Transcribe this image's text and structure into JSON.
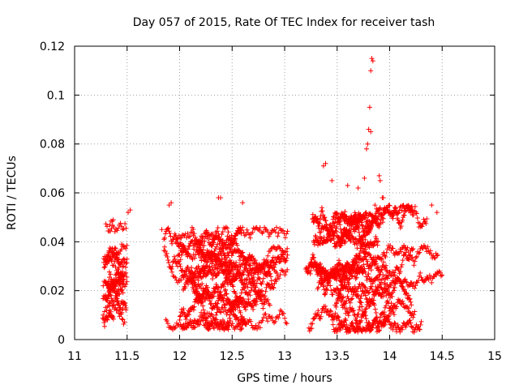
{
  "chart_data": {
    "type": "scatter",
    "title": "Day 057 of 2015, Rate Of TEC Index for receiver tash",
    "xlabel": "GPS time / hours",
    "ylabel": "ROTI / TECUs",
    "xlim": [
      11,
      15
    ],
    "ylim": [
      0,
      0.12
    ],
    "x_ticks": [
      11,
      11.5,
      12,
      12.5,
      13,
      13.5,
      14,
      14.5,
      15
    ],
    "x_tick_labels": [
      "11",
      "11.5",
      "12",
      "12.5",
      "13",
      "13.5",
      "14",
      "14.5",
      "15"
    ],
    "y_ticks": [
      0,
      0.02,
      0.04,
      0.06,
      0.08,
      0.1,
      0.12
    ],
    "y_tick_labels": [
      "0",
      "0.02",
      "0.04",
      "0.06",
      "0.08",
      "0.1",
      "0.12"
    ],
    "grid": true,
    "marker": "+",
    "series_color": "#ff0000",
    "segments": [
      {
        "x_range": [
          11.25,
          11.5
        ],
        "y_range": [
          0.005,
          0.05
        ],
        "count": 320
      },
      {
        "x_range": [
          11.83,
          13.03
        ],
        "y_range": [
          0.004,
          0.046
        ],
        "count": 1500
      },
      {
        "x_range": [
          13.17,
          14.5
        ],
        "y_range": [
          0.003,
          0.055
        ],
        "count": 1700
      }
    ],
    "notable_points": [
      {
        "x": 11.53,
        "y": 0.053
      },
      {
        "x": 11.51,
        "y": 0.052
      },
      {
        "x": 11.83,
        "y": 0.045
      },
      {
        "x": 11.9,
        "y": 0.055
      },
      {
        "x": 11.92,
        "y": 0.056
      },
      {
        "x": 12.37,
        "y": 0.058
      },
      {
        "x": 12.39,
        "y": 0.058
      },
      {
        "x": 12.6,
        "y": 0.056
      },
      {
        "x": 13.37,
        "y": 0.071
      },
      {
        "x": 13.39,
        "y": 0.072
      },
      {
        "x": 13.45,
        "y": 0.065
      },
      {
        "x": 13.6,
        "y": 0.063
      },
      {
        "x": 13.7,
        "y": 0.062
      },
      {
        "x": 13.76,
        "y": 0.066
      },
      {
        "x": 13.78,
        "y": 0.078
      },
      {
        "x": 13.79,
        "y": 0.08
      },
      {
        "x": 13.8,
        "y": 0.086
      },
      {
        "x": 13.81,
        "y": 0.095
      },
      {
        "x": 13.82,
        "y": 0.085
      },
      {
        "x": 13.82,
        "y": 0.11
      },
      {
        "x": 13.83,
        "y": 0.115
      },
      {
        "x": 13.84,
        "y": 0.114
      },
      {
        "x": 13.9,
        "y": 0.067
      },
      {
        "x": 13.91,
        "y": 0.065
      },
      {
        "x": 13.93,
        "y": 0.058
      },
      {
        "x": 13.94,
        "y": 0.058
      },
      {
        "x": 13.86,
        "y": 0.055
      },
      {
        "x": 14.4,
        "y": 0.055
      },
      {
        "x": 14.45,
        "y": 0.052
      }
    ]
  }
}
